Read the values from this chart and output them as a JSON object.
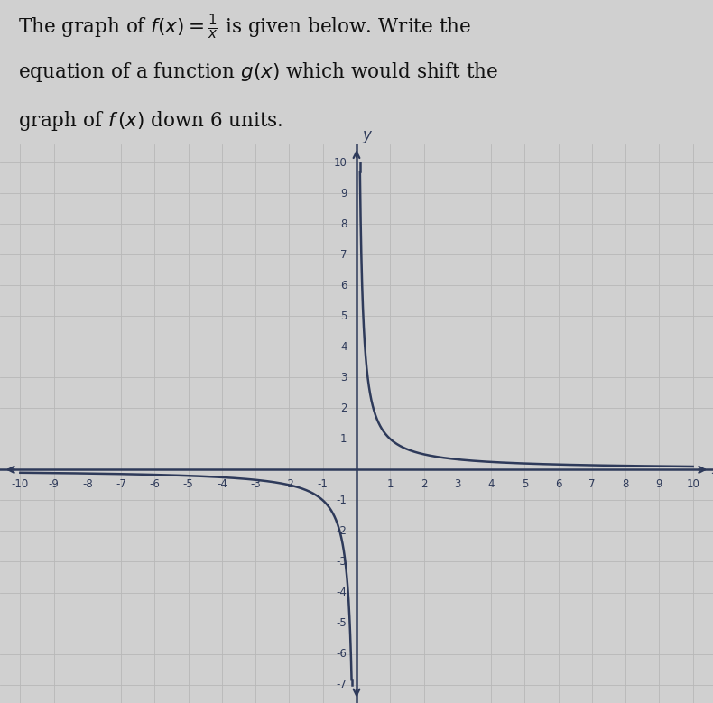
{
  "title_line1": "The graph of $f(x) = \\frac{1}{x}$ is given below. Write the",
  "title_line2": "equation of a function $g(x)$ which would shift the",
  "title_line3": "graph of $f\\,(x)$ down 6 units.",
  "xmin": -10,
  "xmax": 10,
  "ymin": -7,
  "ymax": 10,
  "xticks": [
    -10,
    -9,
    -8,
    -7,
    -6,
    -5,
    -4,
    -3,
    -2,
    -1,
    1,
    2,
    3,
    4,
    5,
    6,
    7,
    8,
    9,
    10
  ],
  "yticks": [
    -7,
    -6,
    -5,
    -4,
    -3,
    -2,
    -1,
    1,
    2,
    3,
    4,
    5,
    6,
    7,
    8,
    9,
    10
  ],
  "curve_color": "#2e3a5a",
  "grid_color": "#b8b8b8",
  "axis_color": "#2e3a5a",
  "background_color": "#d0d0d0",
  "plot_bg_color": "#dcdcdc",
  "text_bg_color": "#d0d0d0",
  "text_color": "#111111",
  "curve_linewidth": 1.8,
  "tick_fontsize": 8.5,
  "text_fontsize": 15.5
}
